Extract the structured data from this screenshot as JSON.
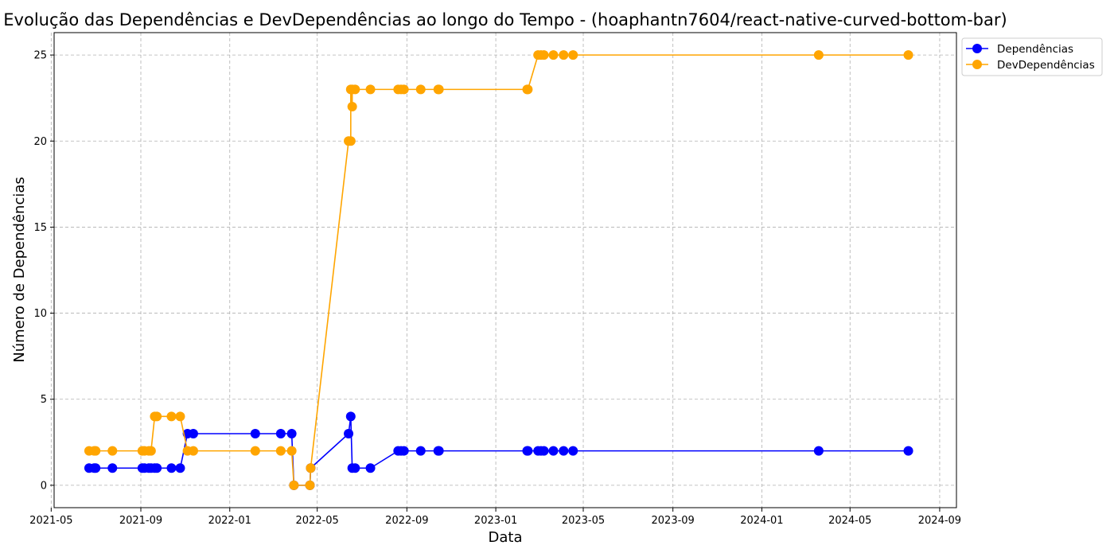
{
  "chart_data": {
    "type": "line",
    "title": "Evolução das Dependências e DevDependências ao longo do Tempo - (hoaphantn7604/react-native-curved-bottom-bar)",
    "xlabel": "Data",
    "ylabel": "Número de Dependências",
    "xlim": [
      "2021-05-05",
      "2024-09-24"
    ],
    "ylim": [
      -1.3,
      26.3
    ],
    "x_ticks": [
      "2021-05-01",
      "2021-09-01",
      "2022-01-01",
      "2022-05-01",
      "2022-09-01",
      "2023-01-01",
      "2023-05-01",
      "2023-09-01",
      "2024-01-01",
      "2024-05-01",
      "2024-09-01"
    ],
    "x_tick_labels": [
      "2021-05",
      "2021-09",
      "2022-01",
      "2022-05",
      "2022-09",
      "2023-01",
      "2023-05",
      "2023-09",
      "2024-01",
      "2024-05",
      "2024-09"
    ],
    "y_ticks": [
      0,
      5,
      10,
      15,
      20,
      25
    ],
    "grid": true,
    "legend_position": "outside-top-right",
    "series": [
      {
        "name": "Dependências",
        "color": "#0000ff",
        "points": [
          [
            "2021-06-22",
            1
          ],
          [
            "2021-06-29",
            1
          ],
          [
            "2021-07-01",
            1
          ],
          [
            "2021-07-24",
            1
          ],
          [
            "2021-09-03",
            1
          ],
          [
            "2021-09-06",
            1
          ],
          [
            "2021-09-12",
            1
          ],
          [
            "2021-09-15",
            1
          ],
          [
            "2021-09-20",
            1
          ],
          [
            "2021-09-23",
            1
          ],
          [
            "2021-10-13",
            1
          ],
          [
            "2021-10-25",
            1
          ],
          [
            "2021-11-04",
            3
          ],
          [
            "2021-11-12",
            3
          ],
          [
            "2022-02-05",
            3
          ],
          [
            "2022-03-12",
            3
          ],
          [
            "2022-03-27",
            3
          ],
          [
            "2022-03-30",
            0
          ],
          [
            "2022-04-21",
            0
          ],
          [
            "2022-04-22",
            1
          ],
          [
            "2022-06-13",
            3
          ],
          [
            "2022-06-16",
            4
          ],
          [
            "2022-06-18",
            1
          ],
          [
            "2022-06-22",
            1
          ],
          [
            "2022-07-13",
            1
          ],
          [
            "2022-08-20",
            2
          ],
          [
            "2022-08-24",
            2
          ],
          [
            "2022-08-28",
            2
          ],
          [
            "2022-09-20",
            2
          ],
          [
            "2022-10-14",
            2
          ],
          [
            "2022-10-15",
            2
          ],
          [
            "2023-02-13",
            2
          ],
          [
            "2023-02-14",
            2
          ],
          [
            "2023-02-28",
            2
          ],
          [
            "2023-03-04",
            2
          ],
          [
            "2023-03-08",
            2
          ],
          [
            "2023-03-21",
            2
          ],
          [
            "2023-04-04",
            2
          ],
          [
            "2023-04-17",
            2
          ],
          [
            "2024-03-19",
            2
          ],
          [
            "2024-07-20",
            2
          ]
        ]
      },
      {
        "name": "DevDependências",
        "color": "#ffa500",
        "points": [
          [
            "2021-06-22",
            2
          ],
          [
            "2021-06-29",
            2
          ],
          [
            "2021-07-01",
            2
          ],
          [
            "2021-07-24",
            2
          ],
          [
            "2021-09-03",
            2
          ],
          [
            "2021-09-06",
            2
          ],
          [
            "2021-09-12",
            2
          ],
          [
            "2021-09-15",
            2
          ],
          [
            "2021-09-20",
            4
          ],
          [
            "2021-09-23",
            4
          ],
          [
            "2021-10-13",
            4
          ],
          [
            "2021-10-25",
            4
          ],
          [
            "2021-11-04",
            2
          ],
          [
            "2021-11-12",
            2
          ],
          [
            "2022-02-05",
            2
          ],
          [
            "2022-03-12",
            2
          ],
          [
            "2022-03-27",
            2
          ],
          [
            "2022-03-30",
            0
          ],
          [
            "2022-04-21",
            0
          ],
          [
            "2022-04-22",
            1
          ],
          [
            "2022-06-13",
            20
          ],
          [
            "2022-06-16",
            20
          ],
          [
            "2022-06-16",
            23
          ],
          [
            "2022-06-18",
            22
          ],
          [
            "2022-06-18",
            23
          ],
          [
            "2022-06-22",
            23
          ],
          [
            "2022-07-13",
            23
          ],
          [
            "2022-08-20",
            23
          ],
          [
            "2022-08-24",
            23
          ],
          [
            "2022-08-28",
            23
          ],
          [
            "2022-09-20",
            23
          ],
          [
            "2022-10-14",
            23
          ],
          [
            "2022-10-15",
            23
          ],
          [
            "2023-02-13",
            23
          ],
          [
            "2023-02-14",
            23
          ],
          [
            "2023-02-28",
            25
          ],
          [
            "2023-03-04",
            25
          ],
          [
            "2023-03-08",
            25
          ],
          [
            "2023-03-21",
            25
          ],
          [
            "2023-04-04",
            25
          ],
          [
            "2023-04-17",
            25
          ],
          [
            "2024-03-19",
            25
          ],
          [
            "2024-07-20",
            25
          ]
        ]
      }
    ]
  }
}
